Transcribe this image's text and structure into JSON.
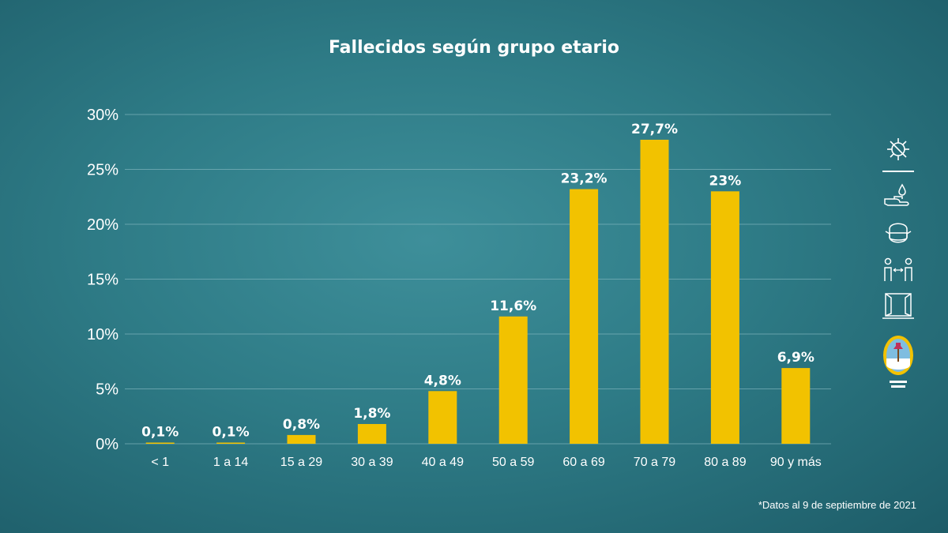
{
  "chart_data": {
    "type": "bar",
    "title": "Fallecidos según grupo etario",
    "categories": [
      "< 1",
      "1 a 14",
      "15 a 29",
      "30 a 39",
      "40 a 49",
      "50 a 59",
      "60 a 69",
      "70 a 79",
      "80 a 89",
      "90 y más"
    ],
    "values": [
      0.1,
      0.1,
      0.8,
      1.8,
      4.8,
      11.6,
      23.2,
      27.7,
      23,
      6.9
    ],
    "value_labels": [
      "0,1%",
      "0,1%",
      "0,8%",
      "1,8%",
      "4,8%",
      "11,6%",
      "23,2%",
      "27,7%",
      "23%",
      "6,9%"
    ],
    "y_ticks": [
      0,
      5,
      10,
      15,
      20,
      25,
      30
    ],
    "y_tick_labels": [
      "0%",
      "5%",
      "10%",
      "15%",
      "20%",
      "25%",
      "30%"
    ],
    "ylim": [
      0,
      30
    ],
    "grid": true,
    "bar_color": "#f2c200",
    "legend": "none"
  },
  "footnote": "*Datos al 9 de septiembre de 2021",
  "colors": {
    "background": "#2e7b86",
    "text": "#ffffff",
    "bar": "#f2c200",
    "gridline": "#7fb4bc"
  },
  "side_icons": [
    "virus-icon",
    "hand-washing-icon",
    "face-mask-icon",
    "social-distancing-icon",
    "window-ventilation-icon",
    "provincial-emblem-icon"
  ]
}
